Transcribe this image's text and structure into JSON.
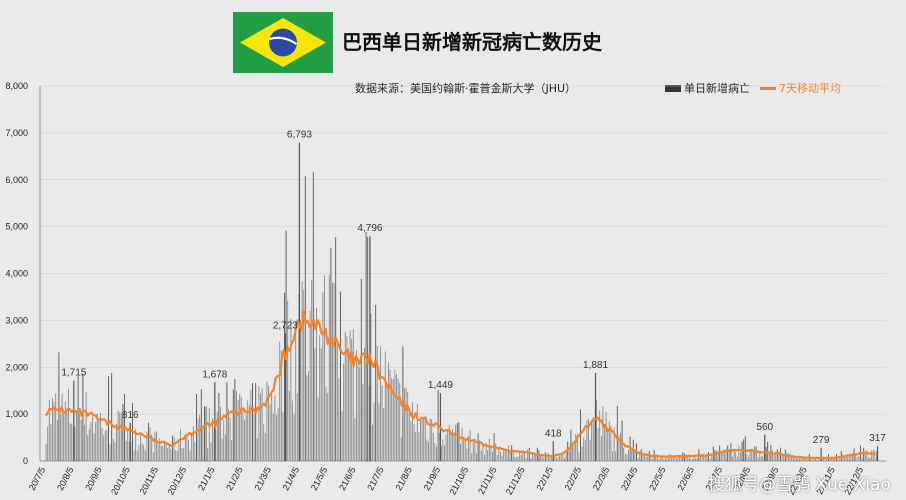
{
  "chart_data": {
    "type": "bar",
    "title": "巴西单日新增新冠病亡数历史",
    "source": "数据来源：美国约翰斯·霍普金斯大学（JHU）",
    "legend": [
      {
        "name": "单日新增病亡",
        "color": "#333333"
      },
      {
        "name": "7天移动平均",
        "color": "#f0842c"
      }
    ],
    "legend_position": "top-right",
    "ylim": [
      0,
      8000
    ],
    "y_ticks": [
      "0",
      "1,000",
      "2,000",
      "3,000",
      "4,000",
      "5,000",
      "6,000",
      "7,000",
      "8,000"
    ],
    "grid": true,
    "x_ticks": [
      "20/7/5",
      "20/8/5",
      "20/9/5",
      "20/10/5",
      "20/11/5",
      "20/12/5",
      "21/1/5",
      "21/2/5",
      "21/3/5",
      "21/4/5",
      "21/5/5",
      "21/6/5",
      "21/7/5",
      "21/8/5",
      "21/9/5",
      "21/10/5",
      "21/11/5",
      "21/12/5",
      "22/1/5",
      "22/2/5",
      "22/3/5",
      "22/4/5",
      "22/5/5",
      "22/6/5",
      "22/7/5",
      "22/8/5",
      "22/9/5",
      "22/10/5",
      "22/11/5",
      "22/12/5"
    ],
    "series": [
      {
        "name": "7天移动平均",
        "type": "line",
        "x": [
          "20/7/5",
          "20/7/20",
          "20/8/5",
          "20/8/20",
          "20/9/5",
          "20/9/20",
          "20/10/5",
          "20/10/20",
          "20/11/5",
          "20/11/20",
          "20/12/5",
          "20/12/20",
          "21/1/5",
          "21/1/20",
          "21/2/5",
          "21/2/20",
          "21/3/5",
          "21/3/20",
          "21/4/5",
          "21/4/20",
          "21/5/5",
          "21/5/20",
          "21/6/5",
          "21/6/20",
          "21/7/5",
          "21/7/20",
          "21/8/5",
          "21/8/20",
          "21/9/5",
          "21/9/20",
          "21/10/5",
          "21/10/20",
          "21/11/5",
          "21/11/20",
          "21/12/5",
          "21/12/20",
          "22/1/5",
          "22/1/20",
          "22/2/5",
          "22/2/20",
          "22/3/5",
          "22/3/20",
          "22/4/5",
          "22/4/20",
          "22/5/5",
          "22/5/20",
          "22/6/5",
          "22/6/20",
          "22/7/5",
          "22/7/20",
          "22/8/5",
          "22/8/20",
          "22/9/5",
          "22/9/20",
          "22/10/5",
          "22/10/20",
          "22/11/5",
          "22/11/20",
          "22/12/5",
          "22/12/20"
        ],
        "values": [
          1050,
          1100,
          1050,
          1000,
          850,
          750,
          650,
          550,
          400,
          350,
          550,
          700,
          800,
          1000,
          1050,
          1100,
          1400,
          2300,
          3000,
          2900,
          2700,
          2300,
          2100,
          2200,
          1700,
          1300,
          1000,
          850,
          700,
          550,
          450,
          350,
          280,
          220,
          180,
          130,
          110,
          200,
          600,
          950,
          650,
          350,
          180,
          110,
          100,
          100,
          110,
          120,
          200,
          240,
          220,
          180,
          150,
          100,
          70,
          60,
          70,
          120,
          170,
          160
        ]
      }
    ],
    "annotations": [
      {
        "x": "20/8/5",
        "y": 1715,
        "label": "1,715"
      },
      {
        "x": "20/10/5",
        "y": 816,
        "label": "816"
      },
      {
        "x": "21/1/5",
        "y": 1678,
        "label": "1,678"
      },
      {
        "x": "21/3/20",
        "y": 2723,
        "label": "2,723"
      },
      {
        "x": "21/4/5",
        "y": 6793,
        "label": "6,793"
      },
      {
        "x": "21/6/20",
        "y": 4796,
        "label": "4,796"
      },
      {
        "x": "21/9/5",
        "y": 1449,
        "label": "1,449"
      },
      {
        "x": "22/1/5",
        "y": 418,
        "label": "418"
      },
      {
        "x": "22/2/20",
        "y": 1881,
        "label": "1,881"
      },
      {
        "x": "22/8/20",
        "y": 560,
        "label": "560"
      },
      {
        "x": "22/10/20",
        "y": 279,
        "label": "279"
      },
      {
        "x": "22/12/20",
        "y": 317,
        "label": "317"
      }
    ]
  },
  "watermark": "搜狐号@雪鸮 Xue Xiao",
  "colors": {
    "bar": "#8a8a8a",
    "bar_peak": "#555555",
    "line": "#f0842c",
    "background": "#e9e9e9",
    "grid": "#cccccc"
  }
}
